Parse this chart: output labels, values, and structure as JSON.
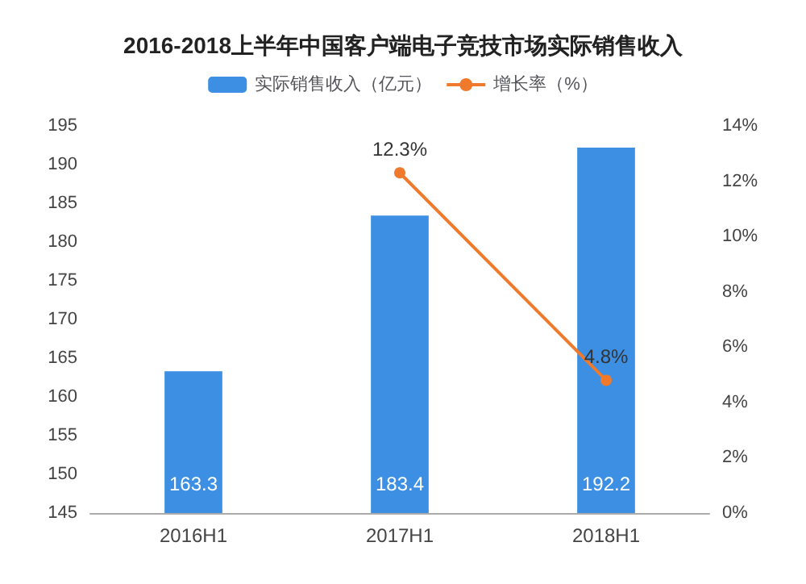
{
  "chart_data": {
    "type": "bar",
    "title": "2016-2018上半年中国客户端电子竞技市场实际销售收入",
    "categories": [
      "2016H1",
      "2017H1",
      "2018H1"
    ],
    "series": [
      {
        "name": "实际销售收入（亿元）",
        "color": "#3c8fe3",
        "values": [
          163.3,
          183.4,
          192.2
        ],
        "value_labels": [
          "163.3",
          "183.4",
          "192.2"
        ]
      },
      {
        "name": "增长率（%）",
        "type": "line",
        "axis": "y2",
        "color": "#f07a2c",
        "values": [
          null,
          12.3,
          4.8
        ],
        "value_labels": [
          null,
          "12.3%",
          "4.8%"
        ],
        "marker": "circle"
      }
    ],
    "ylim": [
      145,
      195
    ],
    "yticks": [
      145,
      150,
      155,
      160,
      165,
      170,
      175,
      180,
      185,
      190,
      195
    ],
    "y2lim": [
      0,
      14
    ],
    "y2ticks": [
      {
        "value": 0,
        "label": "0%"
      },
      {
        "value": 2,
        "label": "2%"
      },
      {
        "value": 4,
        "label": "4%"
      },
      {
        "value": 6,
        "label": "6%"
      },
      {
        "value": 8,
        "label": "8%"
      },
      {
        "value": 10,
        "label": "10%"
      },
      {
        "value": 12,
        "label": "12%"
      },
      {
        "value": 14,
        "label": "14%"
      }
    ],
    "legend": "top",
    "grid": false
  }
}
